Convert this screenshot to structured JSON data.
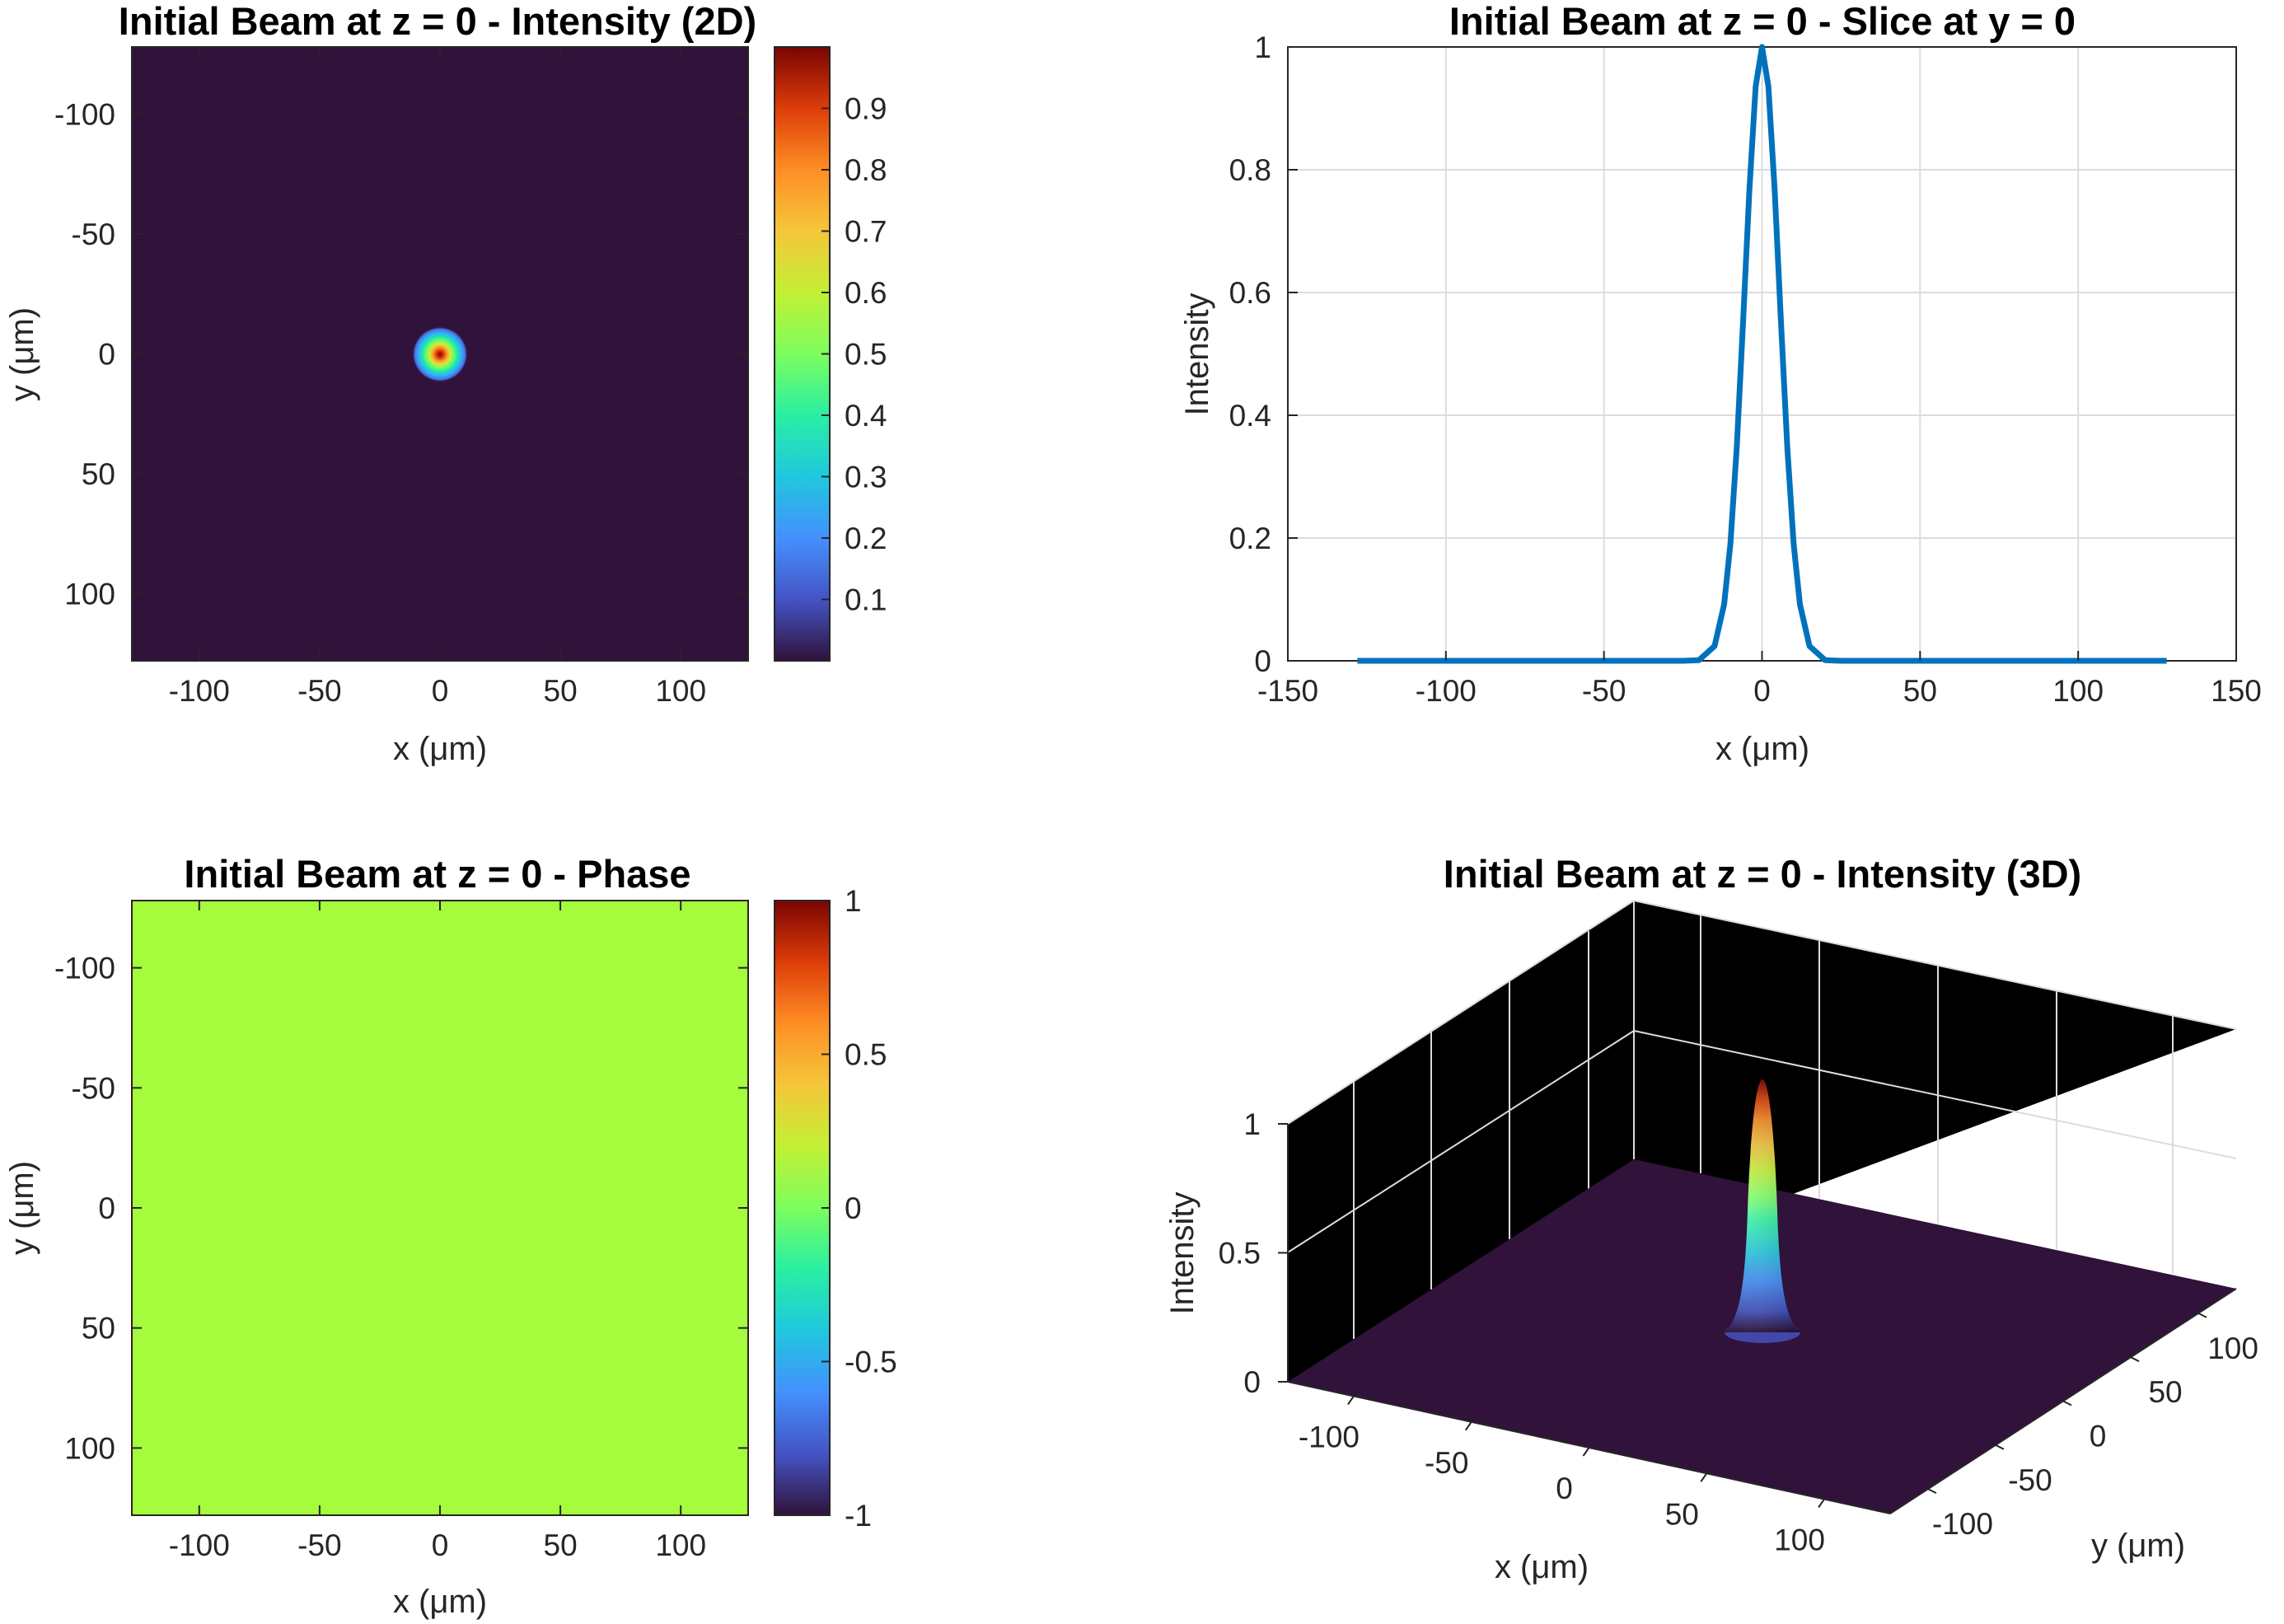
{
  "colors": {
    "background": "#ffffff",
    "axis": "#262626",
    "heatmap_background": "#30123b",
    "phase_fill": "#a4fc3c",
    "line_series": "#0072bd",
    "colormap": "turbo"
  },
  "chart_data": [
    {
      "id": "intensity-2d",
      "type": "heatmap",
      "title": "Initial Beam at z = 0 - Intensity (2D)",
      "xlabel": "x (μm)",
      "ylabel": "y (μm)",
      "xlim": [
        -128,
        128
      ],
      "ylim": [
        -128,
        128
      ],
      "y_direction": "reverse",
      "xticks": [
        -100,
        -50,
        0,
        50,
        100
      ],
      "yticks": [
        -100,
        -50,
        0,
        50,
        100
      ],
      "field": {
        "shape": "gaussian",
        "center_x": 0,
        "center_y": 0,
        "peak": 1,
        "sigma_um": 5.5
      },
      "colorbar": {
        "ticks": [
          "0.1",
          "0.2",
          "0.3",
          "0.4",
          "0.5",
          "0.6",
          "0.7",
          "0.8",
          "0.9"
        ],
        "range": [
          0,
          1
        ],
        "colormap": "turbo"
      }
    },
    {
      "id": "slice-y0",
      "type": "line",
      "title": "Initial Beam at z = 0 - Slice at y = 0",
      "xlabel": "x (μm)",
      "ylabel": "Intensity",
      "xlim": [
        -150,
        150
      ],
      "ylim": [
        0,
        1
      ],
      "xticks": [
        "-150",
        "-100",
        "-50",
        "0",
        "50",
        "100",
        "150"
      ],
      "yticks": [
        "0",
        "0.2",
        "0.4",
        "0.6",
        "0.8",
        "1"
      ],
      "grid": true,
      "series": [
        {
          "x": [
            -128,
            -100,
            -50,
            -25,
            -20,
            -15,
            -12,
            -10,
            -8,
            -6,
            -4,
            -2,
            0,
            2,
            4,
            6,
            8,
            10,
            12,
            15,
            20,
            25,
            50,
            100,
            128
          ],
          "y": [
            0,
            0,
            0,
            0,
            0.001,
            0.024,
            0.092,
            0.19,
            0.347,
            0.552,
            0.768,
            0.936,
            1.0,
            0.936,
            0.768,
            0.552,
            0.347,
            0.19,
            0.092,
            0.024,
            0.001,
            0,
            0,
            0,
            0
          ]
        }
      ]
    },
    {
      "id": "phase",
      "type": "heatmap",
      "title": "Initial Beam at z = 0 - Phase",
      "xlabel": "x (μm)",
      "ylabel": "y (μm)",
      "xlim": [
        -128,
        128
      ],
      "ylim": [
        -128,
        128
      ],
      "y_direction": "reverse",
      "xticks": [
        -100,
        -50,
        0,
        50,
        100
      ],
      "yticks": [
        -100,
        -50,
        0,
        50,
        100
      ],
      "field": {
        "shape": "constant",
        "value": 0
      },
      "colorbar": {
        "ticks": [
          "-1",
          "-0.5",
          "0",
          "0.5",
          "1"
        ],
        "range": [
          -1,
          1
        ],
        "colormap": "turbo"
      }
    },
    {
      "id": "intensity-3d",
      "type": "surface",
      "title": "Initial Beam at z = 0 - Intensity (3D)",
      "xlabel": "x (μm)",
      "ylabel": "y (μm)",
      "zlabel": "Intensity",
      "xticks": [
        "-100",
        "-50",
        "0",
        "50",
        "100"
      ],
      "yticks": [
        "-100",
        "-50",
        "0",
        "50",
        "100"
      ],
      "zticks": [
        "0",
        "0.5",
        "1"
      ],
      "zlim": [
        0,
        1
      ],
      "field": {
        "shape": "gaussian",
        "center_x": 0,
        "center_y": 0,
        "peak": 1,
        "sigma_um": 5.5
      }
    }
  ]
}
